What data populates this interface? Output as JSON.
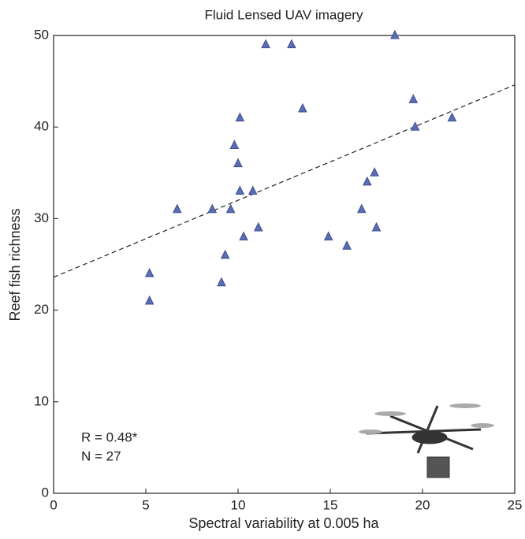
{
  "chart_data": {
    "type": "scatter",
    "title": "Fluid Lensed UAV imagery",
    "x_label": "Spectral variability at 0.005 ha",
    "y_label": "Reef fish richness",
    "series": [
      {
        "color": "#5b6db3",
        "x": [
          5.2,
          5.2,
          6.7,
          8.6,
          9.1,
          9.3,
          9.6,
          9.8,
          10.0,
          10.1,
          10.1,
          10.3,
          10.8,
          11.1,
          11.5,
          12.9,
          13.5,
          14.9,
          15.9,
          16.7,
          17.0,
          17.4,
          17.5,
          18.5,
          19.5,
          19.6,
          21.6
        ],
        "values": [
          24,
          21,
          31,
          31,
          23,
          26,
          31,
          38,
          36,
          41,
          33,
          28,
          33,
          29,
          49,
          49,
          42,
          28,
          27,
          31,
          34,
          35,
          29,
          50,
          43,
          40,
          41
        ]
      }
    ],
    "trendline": {
      "x": [
        0,
        25
      ],
      "y": [
        23.6,
        44.6
      ]
    },
    "annotations": [
      "R = 0.48*",
      "N = 27"
    ],
    "xlim": [
      0,
      25
    ],
    "xticks": [
      0,
      5,
      10,
      15,
      20,
      25
    ],
    "ylim": [
      0,
      50
    ],
    "yticks": [
      0,
      10,
      20,
      30,
      40,
      50
    ]
  }
}
